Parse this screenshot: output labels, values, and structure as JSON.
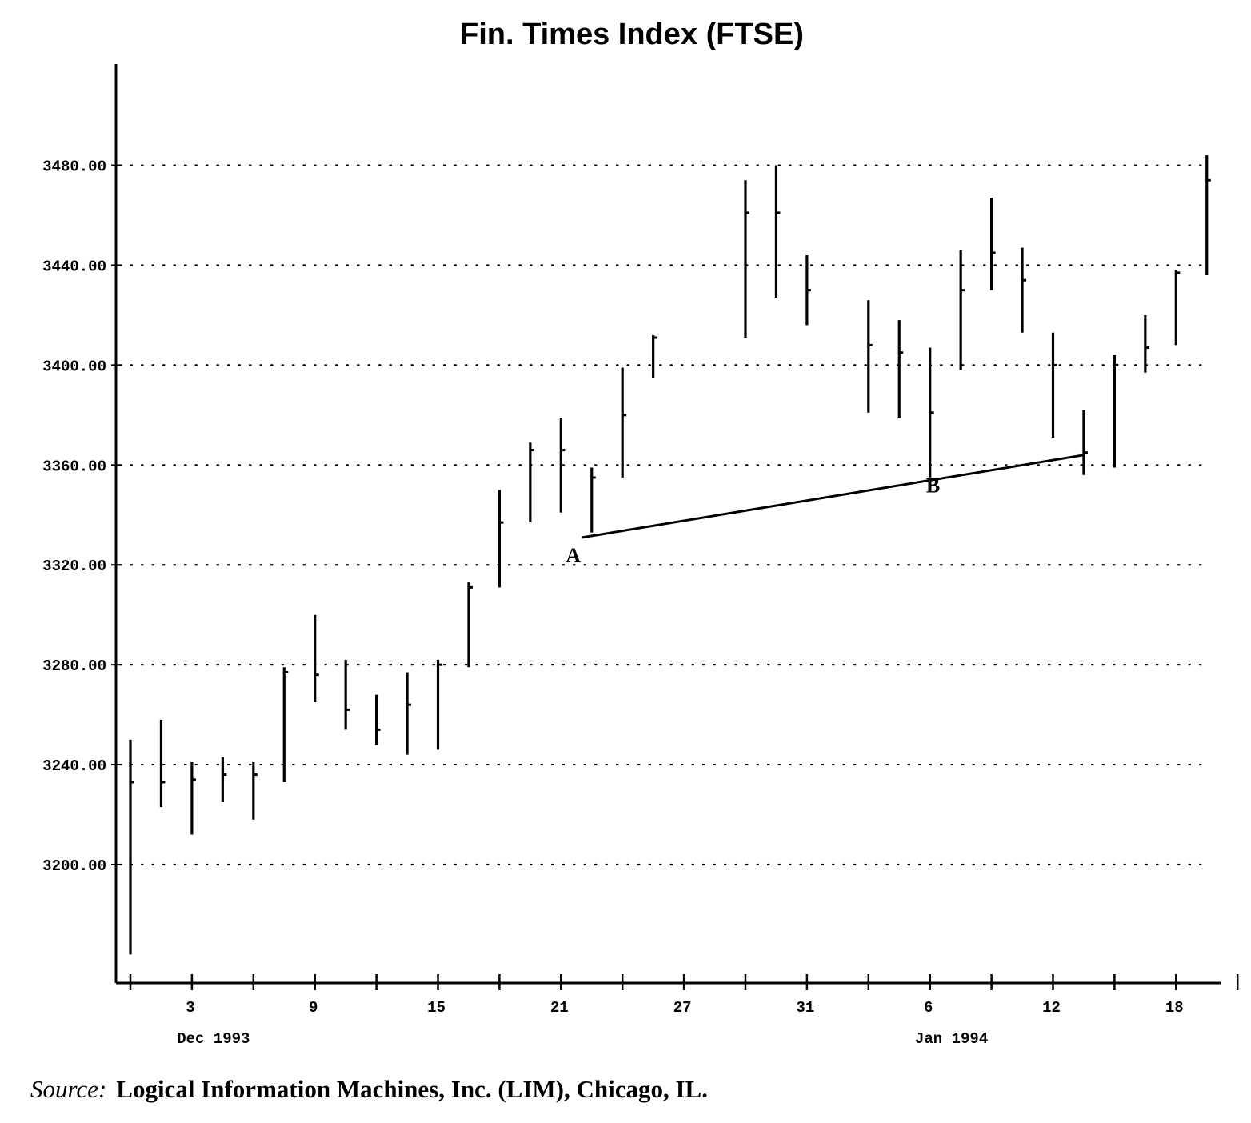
{
  "chart_data": {
    "type": "bar",
    "subtype": "ohlc",
    "title": "Fin. Times Index (FTSE)",
    "xlabel": "",
    "ylabel": "",
    "ylim": [
      3150,
      3520
    ],
    "grid": "horizontal-dotted",
    "y_ticks": [
      {
        "value": 3200,
        "label": "3200.00"
      },
      {
        "value": 3240,
        "label": "3240.00"
      },
      {
        "value": 3280,
        "label": "3280.00"
      },
      {
        "value": 3320,
        "label": "3320.00"
      },
      {
        "value": 3360,
        "label": "3360.00"
      },
      {
        "value": 3400,
        "label": "3400.00"
      },
      {
        "value": 3440,
        "label": "3440.00"
      },
      {
        "value": 3480,
        "label": "3480.00"
      }
    ],
    "x_ticks": [
      {
        "idx": 0,
        "label": ""
      },
      {
        "idx": 2,
        "label": "3"
      },
      {
        "idx": 4,
        "label": ""
      },
      {
        "idx": 6,
        "label": "9"
      },
      {
        "idx": 8,
        "label": ""
      },
      {
        "idx": 10,
        "label": "15"
      },
      {
        "idx": 12,
        "label": ""
      },
      {
        "idx": 14,
        "label": "21"
      },
      {
        "idx": 16,
        "label": ""
      },
      {
        "idx": 18,
        "label": "27"
      },
      {
        "idx": 20,
        "label": ""
      },
      {
        "idx": 22,
        "label": "31"
      },
      {
        "idx": 24,
        "label": ""
      },
      {
        "idx": 26,
        "label": "6"
      },
      {
        "idx": 28,
        "label": ""
      },
      {
        "idx": 30,
        "label": "12"
      },
      {
        "idx": 32,
        "label": ""
      },
      {
        "idx": 34,
        "label": "18"
      },
      {
        "idx": 36,
        "label": ""
      }
    ],
    "month_labels": [
      {
        "idx": 2.7,
        "label": "Dec 1993"
      },
      {
        "idx": 26.7,
        "label": "Jan 1994"
      }
    ],
    "bars": [
      {
        "idx": 0,
        "high": 3250,
        "low": 3164,
        "close": 3233
      },
      {
        "idx": 1,
        "high": 3258,
        "low": 3223,
        "close": 3233
      },
      {
        "idx": 2,
        "high": 3241,
        "low": 3212,
        "close": 3234
      },
      {
        "idx": 3,
        "high": 3243,
        "low": 3225,
        "close": 3236
      },
      {
        "idx": 4,
        "high": 3241,
        "low": 3218,
        "close": 3236
      },
      {
        "idx": 5,
        "high": 3279,
        "low": 3233,
        "close": 3277
      },
      {
        "idx": 6,
        "high": 3300,
        "low": 3265,
        "close": 3276
      },
      {
        "idx": 7,
        "high": 3282,
        "low": 3254,
        "close": 3262
      },
      {
        "idx": 8,
        "high": 3268,
        "low": 3248,
        "close": 3254
      },
      {
        "idx": 9,
        "high": 3277,
        "low": 3244,
        "close": 3264
      },
      {
        "idx": 10,
        "high": 3282,
        "low": 3246,
        "close": 3280
      },
      {
        "idx": 11,
        "high": 3313,
        "low": 3279,
        "close": 3311
      },
      {
        "idx": 12,
        "high": 3350,
        "low": 3311,
        "close": 3337
      },
      {
        "idx": 13,
        "high": 3369,
        "low": 3337,
        "close": 3366
      },
      {
        "idx": 14,
        "high": 3379,
        "low": 3341,
        "close": 3366
      },
      {
        "idx": 15,
        "high": 3359,
        "low": 3333,
        "close": 3355
      },
      {
        "idx": 16,
        "high": 3399,
        "low": 3355,
        "close": 3380
      },
      {
        "idx": 17,
        "high": 3412,
        "low": 3395,
        "close": 3411
      },
      {
        "idx": 20,
        "high": 3474,
        "low": 3411,
        "close": 3461
      },
      {
        "idx": 21,
        "high": 3480,
        "low": 3427,
        "close": 3461
      },
      {
        "idx": 22,
        "high": 3444,
        "low": 3416,
        "close": 3430
      },
      {
        "idx": 24,
        "high": 3426,
        "low": 3381,
        "close": 3408
      },
      {
        "idx": 25,
        "high": 3418,
        "low": 3379,
        "close": 3405
      },
      {
        "idx": 26,
        "high": 3407,
        "low": 3355,
        "close": 3381
      },
      {
        "idx": 27,
        "high": 3446,
        "low": 3398,
        "close": 3430
      },
      {
        "idx": 28,
        "high": 3467,
        "low": 3430,
        "close": 3445
      },
      {
        "idx": 29,
        "high": 3447,
        "low": 3413,
        "close": 3434
      },
      {
        "idx": 30,
        "high": 3413,
        "low": 3371,
        "close": 3400
      },
      {
        "idx": 31,
        "high": 3382,
        "low": 3356,
        "close": 3365
      },
      {
        "idx": 32,
        "high": 3404,
        "low": 3359,
        "close": 3400
      },
      {
        "idx": 33,
        "high": 3420,
        "low": 3397,
        "close": 3407
      },
      {
        "idx": 34,
        "high": 3438,
        "low": 3408,
        "close": 3437
      },
      {
        "idx": 35,
        "high": 3484,
        "low": 3436,
        "close": 3474
      }
    ],
    "trendline": {
      "x1": 15,
      "y1": 3331,
      "x2": 31,
      "y2": 3364
    },
    "annotations": [
      {
        "label": "A",
        "idx": 14.4,
        "value": 3321
      },
      {
        "label": "B",
        "idx": 26.1,
        "value": 3349
      }
    ]
  },
  "source": {
    "label": "Source:",
    "text": "Logical Information Machines, Inc. (LIM), Chicago, IL."
  }
}
